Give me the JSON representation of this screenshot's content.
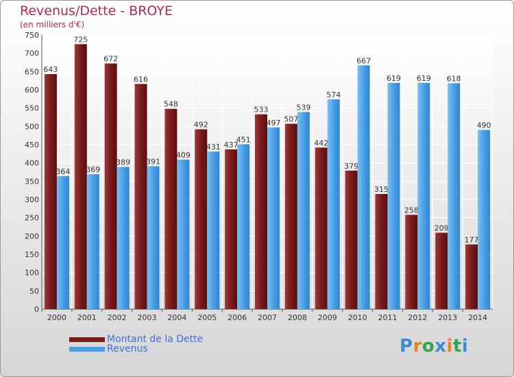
{
  "title": "Revenus/Dette - BROYE",
  "subtitle": "(en milliers d'€)",
  "legend": [
    {
      "label": "Montant de la Dette",
      "color": "#7a1a1a"
    },
    {
      "label": "Revenus",
      "color": "#4aa0e6"
    }
  ],
  "logo": {
    "letters": [
      "P",
      "r",
      "o",
      "x",
      "i",
      "t",
      "i"
    ],
    "colors": [
      "#3b8bd9",
      "#e8841b",
      "#2aa84a",
      "#3b8bd9",
      "#e8841b",
      "#2aa84a",
      "#3b8bd9"
    ]
  },
  "chart_data": {
    "type": "bar",
    "categories": [
      "2000",
      "2001",
      "2002",
      "2003",
      "2004",
      "2005",
      "2006",
      "2007",
      "2008",
      "2009",
      "2010",
      "2011",
      "2012",
      "2013",
      "2014"
    ],
    "series": [
      {
        "name": "Montant de la Dette",
        "color": "#7a1a1a",
        "values": [
          643,
          725,
          672,
          616,
          548,
          492,
          437,
          533,
          507,
          442,
          379,
          315,
          258,
          209,
          177
        ]
      },
      {
        "name": "Revenus",
        "color": "#4aa0e6",
        "values": [
          364,
          369,
          389,
          391,
          409,
          431,
          451,
          497,
          539,
          574,
          667,
          619,
          619,
          618,
          490
        ]
      }
    ],
    "ylim": [
      0,
      750
    ],
    "yticks": [
      0,
      50,
      100,
      150,
      200,
      250,
      300,
      350,
      400,
      450,
      500,
      550,
      600,
      650,
      700,
      750
    ],
    "grid": true,
    "legend_position": "bottom-left"
  }
}
